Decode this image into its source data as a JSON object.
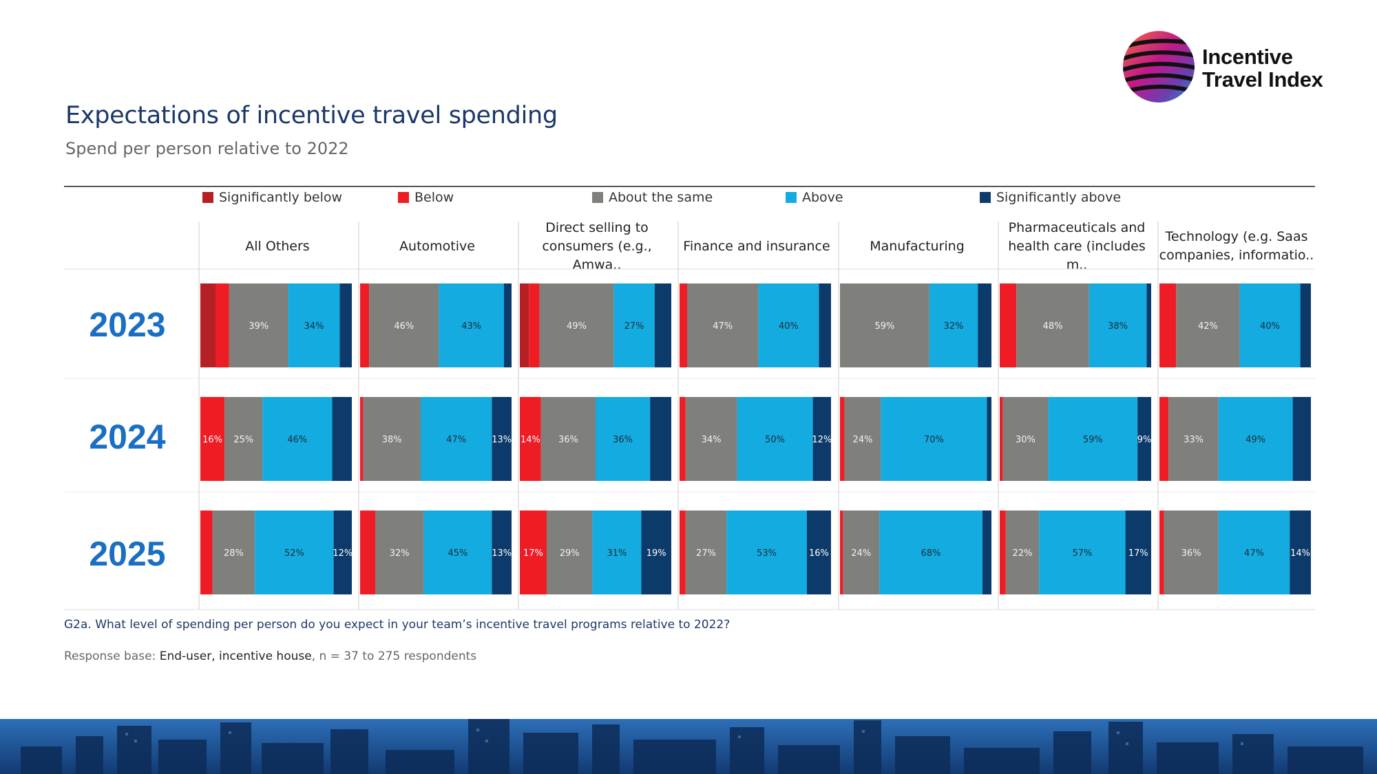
{
  "logo": {
    "line1": "Incentive",
    "line2": "Travel Index"
  },
  "header": {
    "title": "Expectations of incentive travel spending",
    "subtitle": "Spend per person relative to 2022"
  },
  "footer": {
    "question": "G2a. What level of spending per person do you expect in your team’s incentive travel programs relative to 2022?",
    "base_label": "Response base:",
    "base_value": "End-user, incentive house",
    "base_n": ", n = 37 to 275 respondents"
  },
  "colors": {
    "Significantly below": "#b52025",
    "Below": "#ee1c25",
    "About the same": "#7f7f7b",
    "Above": "#14ace0",
    "Significantly above": "#0b3a6b",
    "year_label": "#1a6fc2"
  },
  "chart_data": {
    "type": "bar",
    "stacked": "100%",
    "orientation": "horizontal",
    "legend": [
      "Significantly below",
      "Below",
      "About the same",
      "Above",
      "Significantly above"
    ],
    "legend_position": "top",
    "columns": [
      "All Others",
      "Automotive",
      "Direct selling to\nconsumers (e.g., Amwa..",
      "Finance and insurance",
      "Manufacturing",
      "Pharmaceuticals and\nhealth care (includes m..",
      "Technology (e.g. Saas\ncompanies, informatio.."
    ],
    "rows": [
      "2023",
      "2024",
      "2025"
    ],
    "values": {
      "2023": [
        [
          10,
          9,
          39,
          34,
          8
        ],
        [
          0,
          6,
          46,
          43,
          5
        ],
        [
          6,
          7,
          49,
          27,
          11
        ],
        [
          0,
          5,
          47,
          40,
          8
        ],
        [
          0,
          0,
          59,
          32,
          9
        ],
        [
          0,
          11,
          48,
          38,
          3
        ],
        [
          0,
          11,
          42,
          40,
          7
        ]
      ],
      "2024": [
        [
          0,
          16,
          25,
          46,
          13
        ],
        [
          0,
          2,
          38,
          47,
          13
        ],
        [
          0,
          14,
          36,
          36,
          14
        ],
        [
          0,
          4,
          34,
          50,
          12
        ],
        [
          0,
          3,
          24,
          70,
          3
        ],
        [
          0,
          2,
          30,
          59,
          9
        ],
        [
          0,
          6,
          33,
          49,
          12
        ]
      ],
      "2025": [
        [
          0,
          8,
          28,
          52,
          12
        ],
        [
          0,
          10,
          32,
          45,
          13
        ],
        [
          0,
          17,
          29,
          31,
          19
        ],
        [
          0,
          4,
          27,
          53,
          16
        ],
        [
          0,
          2,
          24,
          68,
          6
        ],
        [
          0,
          4,
          22,
          57,
          17
        ],
        [
          0,
          3,
          36,
          47,
          14
        ]
      ]
    },
    "data_labels_shown": {
      "2023": [
        [
          null,
          null,
          "39%",
          "34%",
          null
        ],
        [
          null,
          null,
          "46%",
          "43%",
          null
        ],
        [
          null,
          null,
          "49%",
          "27%",
          null
        ],
        [
          null,
          null,
          "47%",
          "40%",
          null
        ],
        [
          null,
          null,
          "59%",
          "32%",
          null
        ],
        [
          null,
          null,
          "48%",
          "38%",
          null
        ],
        [
          null,
          null,
          "42%",
          "40%",
          null
        ]
      ],
      "2024": [
        [
          null,
          "16%",
          "25%",
          "46%",
          null
        ],
        [
          null,
          null,
          "38%",
          "47%",
          "13%"
        ],
        [
          null,
          "14%",
          "36%",
          "36%",
          null
        ],
        [
          null,
          null,
          "34%",
          "50%",
          "12%"
        ],
        [
          null,
          null,
          "24%",
          "70%",
          null
        ],
        [
          null,
          null,
          "30%",
          "59%",
          "9%"
        ],
        [
          null,
          null,
          "33%",
          "49%",
          null
        ]
      ],
      "2025": [
        [
          null,
          null,
          "28%",
          "52%",
          "12%"
        ],
        [
          null,
          null,
          "32%",
          "45%",
          "13%"
        ],
        [
          null,
          "17%",
          "29%",
          "31%",
          "19%"
        ],
        [
          null,
          null,
          "27%",
          "53%",
          "16%"
        ],
        [
          null,
          null,
          "24%",
          "68%",
          null
        ],
        [
          null,
          null,
          "22%",
          "57%",
          "17%"
        ],
        [
          null,
          null,
          "36%",
          "47%",
          "14%"
        ]
      ]
    }
  }
}
